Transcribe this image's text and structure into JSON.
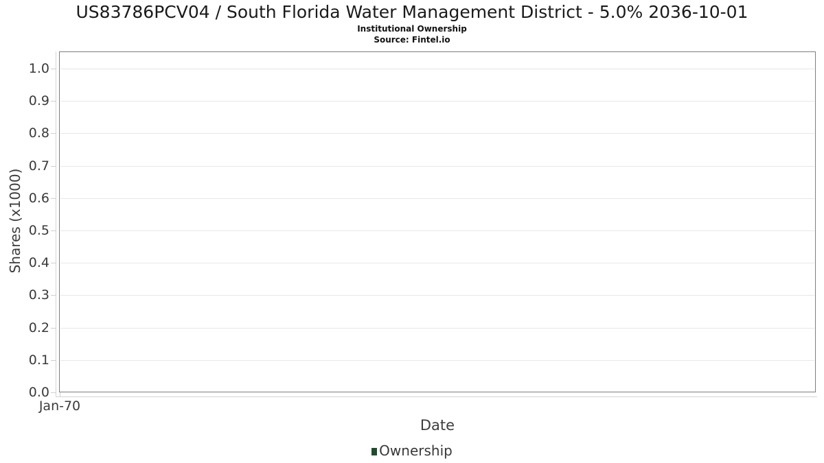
{
  "header": {
    "title": "US83786PCV04 / South Florida Water Management District - 5.0% 2036-10-01",
    "subtitle": "Institutional Ownership",
    "source": "Source: Fintel.io"
  },
  "chart_data": {
    "type": "line",
    "title": "US83786PCV04 / South Florida Water Management District - 5.0% 2036-10-01",
    "subtitle": "Institutional Ownership",
    "source": "Source: Fintel.io",
    "xlabel": "Date",
    "ylabel": "Shares (x1000)",
    "xticks": [
      "Jan-70"
    ],
    "yticks": [
      "0.0",
      "0.1",
      "0.2",
      "0.3",
      "0.4",
      "0.5",
      "0.6",
      "0.7",
      "0.8",
      "0.9",
      "1.0"
    ],
    "ylim": [
      0.0,
      1.05
    ],
    "grid": true,
    "legend_position": "bottom-center",
    "series": [
      {
        "name": "Ownership",
        "color": "#1e4d2c",
        "x": [],
        "values": []
      }
    ]
  },
  "colors": {
    "legend_marker": "#1e4d2c",
    "plot_border": "#7d7d7d",
    "gridline": "#e7e7e7",
    "axis_line": "#d4d4d4"
  }
}
